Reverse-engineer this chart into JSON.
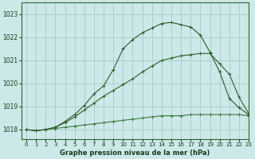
{
  "bg_color": "#cde8e8",
  "grid_color": "#aacfcf",
  "xlabel": "Graphe pression niveau de la mer (hPa)",
  "xlim": [
    -0.5,
    23
  ],
  "ylim": [
    1017.6,
    1023.5
  ],
  "yticks": [
    1018,
    1019,
    1020,
    1021,
    1022,
    1023
  ],
  "xticks": [
    0,
    1,
    2,
    3,
    4,
    5,
    6,
    7,
    8,
    9,
    10,
    11,
    12,
    13,
    14,
    15,
    16,
    17,
    18,
    19,
    20,
    21,
    22,
    23
  ],
  "line_flat_x": [
    0,
    1,
    2,
    3,
    4,
    5,
    6,
    7,
    8,
    9,
    10,
    11,
    12,
    13,
    14,
    15,
    16,
    17,
    18,
    19,
    20,
    21,
    22,
    23
  ],
  "line_flat_y": [
    1018.0,
    1017.95,
    1018.0,
    1018.05,
    1018.1,
    1018.15,
    1018.2,
    1018.25,
    1018.3,
    1018.35,
    1018.4,
    1018.45,
    1018.5,
    1018.55,
    1018.6,
    1018.6,
    1018.6,
    1018.65,
    1018.65,
    1018.65,
    1018.65,
    1018.65,
    1018.65,
    1018.6
  ],
  "line_mid_x": [
    0,
    1,
    2,
    3,
    4,
    5,
    6,
    7,
    8,
    9,
    10,
    11,
    12,
    13,
    14,
    15,
    16,
    17,
    18,
    19,
    20,
    21,
    22,
    23
  ],
  "line_mid_y": [
    1018.0,
    1017.95,
    1018.0,
    1018.1,
    1018.3,
    1018.55,
    1018.85,
    1019.15,
    1019.45,
    1019.7,
    1019.95,
    1020.2,
    1020.5,
    1020.75,
    1021.0,
    1021.1,
    1021.2,
    1021.25,
    1021.3,
    1021.3,
    1020.85,
    1020.4,
    1019.4,
    1018.7
  ],
  "line_peak_x": [
    0,
    1,
    2,
    3,
    4,
    5,
    6,
    7,
    8,
    9,
    10,
    11,
    12,
    13,
    14,
    15,
    16,
    17,
    18,
    19,
    20,
    21,
    22,
    23
  ],
  "line_peak_y": [
    1018.0,
    1017.95,
    1018.0,
    1018.1,
    1018.35,
    1018.65,
    1019.05,
    1019.55,
    1019.9,
    1020.6,
    1021.5,
    1021.9,
    1022.2,
    1022.4,
    1022.6,
    1022.65,
    1022.55,
    1022.45,
    1022.1,
    1021.35,
    1020.5,
    1019.35,
    1018.95,
    1018.65
  ],
  "line_color_flat": "#3d7a3d",
  "line_color_mid": "#2d622d",
  "line_color_peak": "#2a5a2a",
  "spine_color": "#336633",
  "tick_color": "#1a3a1a",
  "xlabel_color": "#1a3a1a",
  "xlabel_fontsize": 6.0,
  "ytick_fontsize": 5.5,
  "xtick_fontsize": 5.0
}
